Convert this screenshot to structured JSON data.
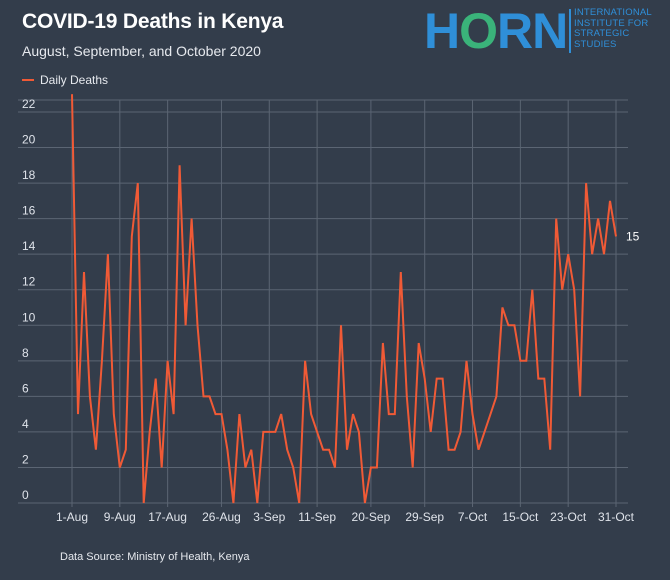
{
  "header": {
    "title": "COVID-19 Deaths in Kenya",
    "subtitle": "August, September, and October 2020"
  },
  "logo": {
    "word_h": "H",
    "word_o": "O",
    "word_rn": "RN",
    "lines": [
      "INTERNATIONAL",
      "INSTITUTE FOR",
      "STRATEGIC",
      "STUDIES"
    ]
  },
  "footer": {
    "source": "Data Source: Ministry of Health, Kenya"
  },
  "colors": {
    "background": "#333d4b",
    "line": "#f05a36",
    "grid": "#5b6573",
    "logo_blue": "#2f8fd8",
    "logo_green": "#3ab37a"
  },
  "chart_data": {
    "type": "line",
    "legend_position": "top-left",
    "grid": true,
    "ylim": [
      0,
      22
    ],
    "yticks": [
      0,
      2,
      4,
      6,
      8,
      10,
      12,
      14,
      16,
      18,
      20,
      22
    ],
    "xtick_labels": [
      "1-Aug",
      "9-Aug",
      "17-Aug",
      "26-Aug",
      "3-Sep",
      "11-Sep",
      "20-Sep",
      "29-Sep",
      "7-Oct",
      "15-Oct",
      "23-Oct",
      "31-Oct"
    ],
    "xtick_days": [
      0,
      8,
      16,
      25,
      33,
      41,
      50,
      59,
      67,
      75,
      83,
      91
    ],
    "end_label": "15",
    "series": [
      {
        "name": "Daily Deaths",
        "x_start": "1-Aug",
        "values": [
          23,
          5,
          13,
          6,
          3,
          8,
          14,
          5,
          2,
          3,
          15,
          18,
          0,
          4,
          7,
          2,
          8,
          5,
          19,
          10,
          16,
          10,
          6,
          6,
          5,
          5,
          3,
          0,
          5,
          2,
          3,
          0,
          4,
          4,
          4,
          5,
          3,
          2,
          0,
          8,
          5,
          4,
          3,
          3,
          2,
          10,
          3,
          5,
          4,
          0,
          2,
          2,
          9,
          5,
          5,
          13,
          6,
          2,
          9,
          7,
          4,
          7,
          7,
          3,
          3,
          4,
          8,
          5,
          3,
          4,
          5,
          6,
          11,
          10,
          10,
          8,
          8,
          12,
          7,
          7,
          3,
          16,
          12,
          14,
          12,
          6,
          18,
          14,
          16,
          14,
          17,
          15
        ]
      }
    ]
  }
}
